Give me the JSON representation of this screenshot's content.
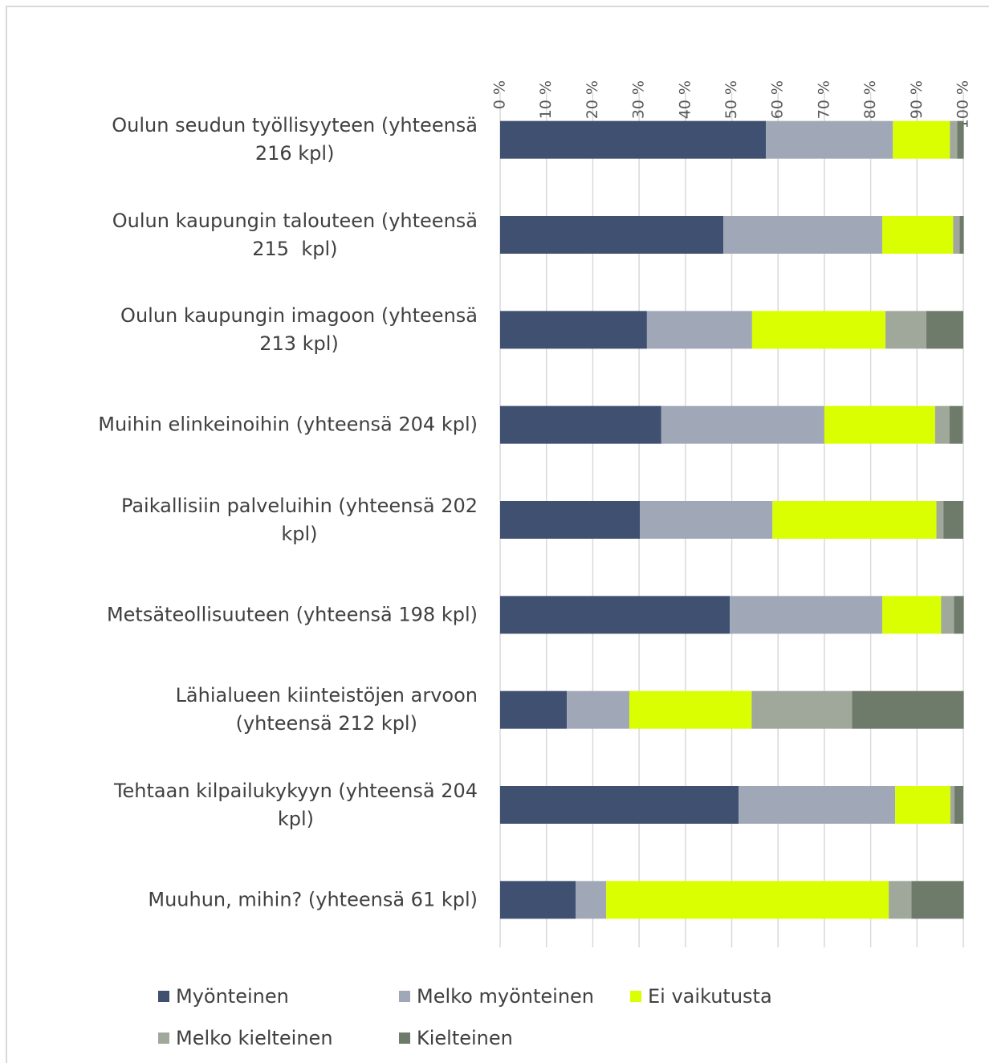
{
  "chart_data": {
    "type": "stacked_barh",
    "categories": [
      "Oulun seudun työllisyyteen (yhteensä\n216 kpl)",
      "Oulun kaupungin talouteen (yhteensä\n215  kpl)",
      "Oulun kaupungin imagoon (yhteensä\n213 kpl)",
      "Muihin elinkeinoihin (yhteensä 204 kpl)",
      "Paikallisiin palveluihin (yhteensä 202\nkpl)",
      "Metsäteollisuuteen (yhteensä 198 kpl)",
      "Lähialueen kiinteistöjen arvoon\n(yhteensä 212 kpl)",
      "Tehtaan kilpailukykyyn (yhteensä 204\nkpl)",
      "Muuhun, mihin? (yhteensä 61 kpl)"
    ],
    "series": [
      {
        "name": "Myönteinen",
        "color": "#3f5070",
        "values": [
          57.4,
          48.2,
          31.7,
          34.8,
          30.2,
          49.6,
          14.4,
          51.5,
          16.3
        ]
      },
      {
        "name": "Melko myönteinen",
        "color": "#a0a8b8",
        "values": [
          27.4,
          34.3,
          22.7,
          35.2,
          28.6,
          32.9,
          13.5,
          33.8,
          6.6
        ]
      },
      {
        "name": "Ei vaikutusta",
        "color": "#d9ff00",
        "values": [
          12.3,
          15.3,
          28.8,
          23.9,
          35.4,
          12.7,
          26.4,
          11.9,
          61.0
        ]
      },
      {
        "name": "Melko kielteinen",
        "color": "#a0a89c",
        "values": [
          1.6,
          1.4,
          8.8,
          3.1,
          1.5,
          2.8,
          21.7,
          0.9,
          4.9
        ]
      },
      {
        "name": "Kielteinen",
        "color": "#6e7b6a",
        "values": [
          1.4,
          0.9,
          8.0,
          2.9,
          4.3,
          2.1,
          24.1,
          1.9,
          11.3
        ]
      }
    ],
    "xlim": [
      0,
      100
    ],
    "xticks": [
      {
        "value": 0,
        "label": "0 %"
      },
      {
        "value": 10,
        "label": "10 %"
      },
      {
        "value": 20,
        "label": "20 %"
      },
      {
        "value": 30,
        "label": "30 %"
      },
      {
        "value": 40,
        "label": "40 %"
      },
      {
        "value": 50,
        "label": "50 %"
      },
      {
        "value": 60,
        "label": "60 %"
      },
      {
        "value": 70,
        "label": "70 %"
      },
      {
        "value": 80,
        "label": "80 %"
      },
      {
        "value": 90,
        "label": "90 %"
      },
      {
        "value": 100,
        "label": "100 %"
      }
    ],
    "grid": true,
    "legend": "bottom"
  }
}
